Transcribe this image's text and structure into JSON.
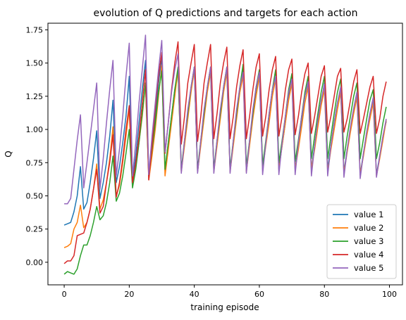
{
  "chart_data": {
    "type": "line",
    "title": "evolution of Q predictions and targets for each action",
    "xlabel": "training episode",
    "ylabel": "Q",
    "xlim": [
      -5,
      104
    ],
    "ylim": [
      -0.17,
      1.8
    ],
    "xticks": [
      0,
      20,
      40,
      60,
      80,
      100
    ],
    "xtick_labels": [
      "0",
      "20",
      "40",
      "60",
      "80",
      "100"
    ],
    "yticks": [
      0.0,
      0.25,
      0.5,
      0.75,
      1.0,
      1.25,
      1.5,
      1.75
    ],
    "ytick_labels": [
      "0.00",
      "0.25",
      "0.50",
      "0.75",
      "1.00",
      "1.25",
      "1.50",
      "1.75"
    ],
    "legend_position": "lower-right",
    "grid": false,
    "series": [
      {
        "name": "value 1",
        "color": "#1f77b4",
        "values": [
          0.28,
          0.29,
          0.3,
          0.38,
          0.5,
          0.72,
          0.4,
          0.45,
          0.6,
          0.78,
          0.99,
          0.48,
          0.6,
          0.75,
          0.95,
          1.22,
          0.6,
          0.72,
          0.9,
          1.1,
          1.4,
          0.62,
          0.8,
          1.05,
          1.3,
          1.52,
          0.66,
          0.85,
          1.1,
          1.35,
          1.55,
          0.69,
          0.9,
          1.1,
          1.3,
          1.45,
          0.69,
          0.9,
          1.1,
          1.3,
          1.47,
          0.68,
          0.9,
          1.1,
          1.3,
          1.45,
          0.69,
          0.9,
          1.1,
          1.3,
          1.45,
          0.69,
          0.9,
          1.1,
          1.3,
          1.45,
          0.69,
          0.9,
          1.1,
          1.3,
          1.4,
          0.7,
          0.9,
          1.1,
          1.3,
          1.4,
          0.7,
          0.88,
          1.05,
          1.25,
          1.4,
          0.7,
          0.88,
          1.05,
          1.25,
          1.35,
          0.7,
          0.88,
          1.05,
          1.2,
          1.35,
          0.7,
          0.88,
          1.05,
          1.2,
          1.3,
          0.68,
          0.85,
          1.0,
          1.15,
          1.28,
          0.66,
          0.82,
          0.98,
          1.12,
          1.23,
          0.66,
          0.8,
          0.95,
          1.06
        ]
      },
      {
        "name": "value 2",
        "color": "#ff7f0e",
        "values": [
          0.11,
          0.12,
          0.14,
          0.25,
          0.3,
          0.43,
          0.26,
          0.3,
          0.4,
          0.55,
          0.74,
          0.4,
          0.47,
          0.6,
          0.78,
          1.02,
          0.5,
          0.58,
          0.75,
          0.95,
          1.15,
          0.58,
          0.72,
          0.9,
          1.1,
          1.35,
          0.62,
          0.8,
          1.0,
          1.25,
          1.48,
          0.65,
          0.85,
          1.05,
          1.25,
          1.45,
          0.68,
          0.88,
          1.08,
          1.28,
          1.45,
          0.68,
          0.88,
          1.08,
          1.28,
          1.43,
          0.68,
          0.88,
          1.08,
          1.28,
          1.43,
          0.68,
          0.88,
          1.08,
          1.28,
          1.4,
          0.68,
          0.88,
          1.08,
          1.25,
          1.4,
          0.7,
          0.88,
          1.05,
          1.25,
          1.38,
          0.7,
          0.88,
          1.05,
          1.22,
          1.35,
          0.7,
          0.85,
          1.02,
          1.2,
          1.32,
          0.7,
          0.85,
          1.02,
          1.18,
          1.3,
          0.68,
          0.85,
          1.0,
          1.15,
          1.28,
          0.67,
          0.83,
          0.98,
          1.12,
          1.24,
          0.66,
          0.8,
          0.95,
          1.08,
          1.2,
          0.65,
          0.78,
          0.92,
          1.07
        ]
      },
      {
        "name": "value 3",
        "color": "#2ca02c",
        "values": [
          -0.09,
          -0.07,
          -0.08,
          -0.09,
          -0.05,
          0.05,
          0.13,
          0.13,
          0.2,
          0.3,
          0.42,
          0.32,
          0.35,
          0.45,
          0.6,
          0.8,
          0.46,
          0.52,
          0.65,
          0.82,
          1.0,
          0.56,
          0.7,
          0.9,
          1.12,
          1.35,
          0.65,
          0.85,
          1.05,
          1.28,
          1.44,
          0.7,
          0.9,
          1.1,
          1.3,
          1.47,
          0.7,
          0.92,
          1.12,
          1.32,
          1.47,
          0.7,
          0.92,
          1.12,
          1.32,
          1.47,
          0.7,
          0.92,
          1.12,
          1.32,
          1.47,
          0.7,
          0.92,
          1.12,
          1.32,
          1.49,
          0.72,
          0.92,
          1.12,
          1.32,
          1.45,
          0.73,
          0.92,
          1.12,
          1.3,
          1.45,
          0.75,
          0.92,
          1.1,
          1.3,
          1.42,
          0.76,
          0.92,
          1.1,
          1.28,
          1.4,
          0.78,
          0.95,
          1.12,
          1.28,
          1.4,
          0.78,
          0.95,
          1.12,
          1.28,
          1.38,
          0.78,
          0.95,
          1.1,
          1.25,
          1.35,
          0.78,
          0.93,
          1.08,
          1.22,
          1.3,
          0.78,
          0.9,
          1.05,
          1.17
        ]
      },
      {
        "name": "value 4",
        "color": "#d62728",
        "values": [
          -0.01,
          0.01,
          0.01,
          0.05,
          0.2,
          0.21,
          0.22,
          0.3,
          0.4,
          0.55,
          0.7,
          0.37,
          0.42,
          0.6,
          0.75,
          0.96,
          0.49,
          0.6,
          0.78,
          1.0,
          1.18,
          0.6,
          0.75,
          0.95,
          1.2,
          1.45,
          0.62,
          0.88,
          1.15,
          1.4,
          1.58,
          0.82,
          1.05,
          1.3,
          1.5,
          1.66,
          0.89,
          1.1,
          1.35,
          1.5,
          1.64,
          0.91,
          1.1,
          1.35,
          1.5,
          1.64,
          0.93,
          1.12,
          1.35,
          1.5,
          1.62,
          0.93,
          1.1,
          1.32,
          1.48,
          1.6,
          0.93,
          1.1,
          1.3,
          1.47,
          1.57,
          0.95,
          1.1,
          1.3,
          1.45,
          1.55,
          0.95,
          1.1,
          1.3,
          1.45,
          1.53,
          0.96,
          1.1,
          1.28,
          1.42,
          1.5,
          0.97,
          1.1,
          1.25,
          1.4,
          1.48,
          0.98,
          1.1,
          1.25,
          1.4,
          1.46,
          0.98,
          1.08,
          1.22,
          1.36,
          1.45,
          0.97,
          1.08,
          1.2,
          1.32,
          1.4,
          0.97,
          1.08,
          1.25,
          1.36
        ]
      },
      {
        "name": "value 5",
        "color": "#9467bd",
        "values": [
          0.44,
          0.44,
          0.48,
          0.7,
          0.92,
          1.11,
          0.56,
          0.75,
          0.95,
          1.15,
          1.35,
          0.55,
          0.78,
          1.05,
          1.3,
          1.52,
          0.65,
          0.85,
          1.1,
          1.4,
          1.65,
          0.65,
          0.9,
          1.2,
          1.45,
          1.71,
          0.66,
          0.95,
          1.2,
          1.45,
          1.67,
          0.83,
          1.05,
          1.28,
          1.45,
          1.57,
          0.67,
          0.92,
          1.15,
          1.32,
          1.47,
          0.67,
          0.92,
          1.15,
          1.32,
          1.47,
          0.67,
          0.92,
          1.15,
          1.32,
          1.47,
          0.67,
          0.92,
          1.15,
          1.32,
          1.43,
          0.67,
          0.92,
          1.15,
          1.32,
          1.43,
          0.66,
          0.9,
          1.12,
          1.3,
          1.4,
          0.66,
          0.9,
          1.1,
          1.28,
          1.38,
          0.66,
          0.9,
          1.1,
          1.25,
          1.36,
          0.65,
          0.88,
          1.08,
          1.22,
          1.34,
          0.65,
          0.88,
          1.05,
          1.2,
          1.32,
          0.64,
          0.85,
          1.02,
          1.16,
          1.28,
          0.63,
          0.82,
          0.98,
          1.12,
          1.24,
          0.64,
          0.8,
          0.95,
          1.08
        ]
      }
    ]
  }
}
